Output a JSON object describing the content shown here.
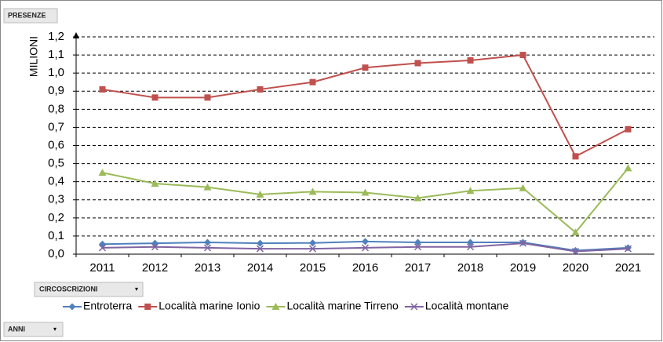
{
  "chart_data": {
    "type": "line",
    "page_field": "PRESENZE",
    "legend_field": "CIRCOSCRIZIONI",
    "axis_field": "ANNI",
    "y_label": "MILIONI",
    "categories": [
      "2011",
      "2012",
      "2013",
      "2014",
      "2015",
      "2016",
      "2017",
      "2018",
      "2019",
      "2020",
      "2021"
    ],
    "series": [
      {
        "name": "Entroterra",
        "color": "#4f81bd",
        "marker": "diamond",
        "values": [
          0.055,
          0.06,
          0.065,
          0.06,
          0.062,
          0.07,
          0.065,
          0.065,
          0.065,
          0.02,
          0.035
        ]
      },
      {
        "name": "Località marine Ionio",
        "color": "#c0504d",
        "marker": "square",
        "values": [
          0.91,
          0.865,
          0.865,
          0.91,
          0.95,
          1.03,
          1.055,
          1.07,
          1.1,
          0.54,
          0.69
        ]
      },
      {
        "name": "Località marine Tirreno",
        "color": "#9bbb59",
        "marker": "triangle",
        "values": [
          0.45,
          0.39,
          0.37,
          0.33,
          0.345,
          0.34,
          0.31,
          0.35,
          0.365,
          0.12,
          0.475
        ]
      },
      {
        "name": "Località montane",
        "color": "#8064a2",
        "marker": "x",
        "values": [
          0.035,
          0.04,
          0.035,
          0.03,
          0.03,
          0.035,
          0.04,
          0.04,
          0.06,
          0.015,
          0.03
        ]
      }
    ],
    "ylim": [
      0,
      1.2
    ],
    "yticks": [
      {
        "value": 0,
        "label": "0,0"
      },
      {
        "value": 0.1,
        "label": "0,1"
      },
      {
        "value": 0.2,
        "label": "0,2"
      },
      {
        "value": 0.3,
        "label": "0,3"
      },
      {
        "value": 0.4,
        "label": "0,4"
      },
      {
        "value": 0.5,
        "label": "0,5"
      },
      {
        "value": 0.6,
        "label": "0,6"
      },
      {
        "value": 0.7,
        "label": "0,7"
      },
      {
        "value": 0.8,
        "label": "0,8"
      },
      {
        "value": 0.9,
        "label": "0,9"
      },
      {
        "value": 1,
        "label": "1,0"
      },
      {
        "value": 1.1,
        "label": "1,1"
      },
      {
        "value": 1.2,
        "label": "1,2"
      }
    ],
    "grid": true
  }
}
